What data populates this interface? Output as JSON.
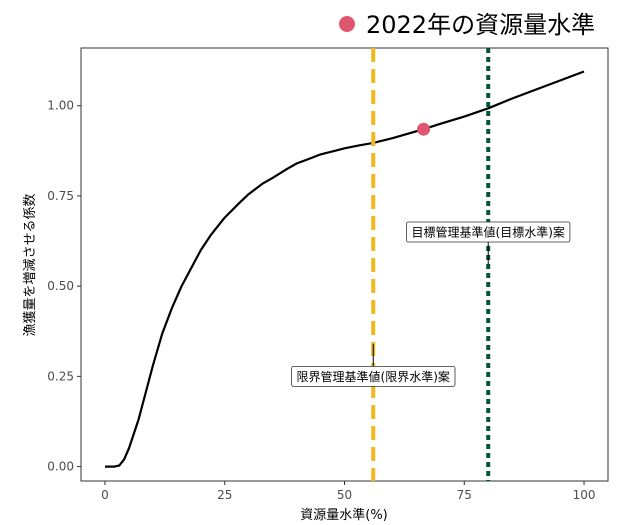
{
  "chart_data": {
    "type": "line",
    "title": "",
    "xlabel": "資源量水準(%)",
    "ylabel": "漁獲量を増減させる係数",
    "xlim": [
      -5,
      105
    ],
    "ylim": [
      -0.04,
      1.16
    ],
    "x_ticks": [
      0,
      25,
      50,
      75,
      100
    ],
    "x_tick_labels": [
      "0",
      "25",
      "50",
      "75",
      "100"
    ],
    "y_ticks": [
      0,
      0.25,
      0.5,
      0.75,
      1.0
    ],
    "y_tick_labels": [
      "0.00",
      "0.25",
      "0.50",
      "0.75",
      "1.00"
    ],
    "grid": false,
    "series": [
      {
        "color": "#000000",
        "x": [
          0,
          2,
          3,
          4,
          5,
          6,
          7,
          8,
          9,
          10,
          12,
          14,
          16,
          18,
          20,
          22,
          25,
          28,
          30,
          33,
          35,
          38,
          40,
          43,
          45,
          48,
          50,
          53,
          56,
          60,
          66.5,
          70,
          75,
          80,
          85,
          90,
          95,
          100
        ],
        "y": [
          0,
          0,
          0.003,
          0.02,
          0.05,
          0.09,
          0.13,
          0.18,
          0.23,
          0.28,
          0.37,
          0.44,
          0.5,
          0.55,
          0.6,
          0.64,
          0.69,
          0.73,
          0.755,
          0.785,
          0.8,
          0.825,
          0.84,
          0.855,
          0.865,
          0.875,
          0.882,
          0.89,
          0.897,
          0.91,
          0.935,
          0.95,
          0.97,
          0.993,
          1.02,
          1.045,
          1.07,
          1.095
        ]
      }
    ],
    "reference_lines": [
      {
        "x": 56,
        "color": "#f0b81e",
        "style": "dashed",
        "label": "限界管理基準値(限界水準)案",
        "label_y": 0.25,
        "stem_y": [
          0.25,
          0.34
        ]
      },
      {
        "x": 80,
        "color": "#00553a",
        "style": "dotted",
        "label": "目標管理基準値(目標水準)案",
        "label_y": 0.65,
        "stem_y": [
          0.56,
          0.65
        ]
      }
    ],
    "highlight_point": {
      "x": 66.5,
      "y": 0.935,
      "color": "#e05570",
      "label": "2022年の資源量水準"
    },
    "legend": {
      "position": "top-right",
      "entries": [
        "2022年の資源量水準"
      ]
    }
  }
}
